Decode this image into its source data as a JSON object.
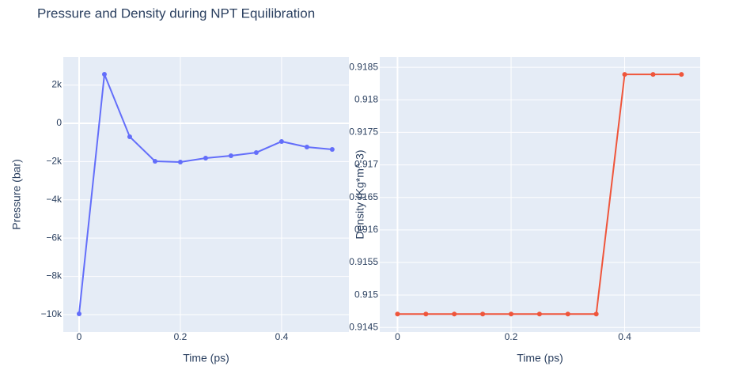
{
  "title": "Pressure and Density during NPT Equilibration",
  "chart_data": [
    {
      "type": "line",
      "xlabel": "Time (ps)",
      "ylabel": "Pressure (bar)",
      "x": [
        0,
        0.05,
        0.1,
        0.15,
        0.2,
        0.25,
        0.3,
        0.35,
        0.4,
        0.45,
        0.5
      ],
      "values": [
        -9959,
        2562,
        -702,
        -1983,
        -2025,
        -1818,
        -1694,
        -1529,
        -950,
        -1240,
        -1364
      ],
      "color": "#636efa",
      "markers": true,
      "grid": true,
      "xlim": [
        -0.03125,
        0.533
      ],
      "xticks": [
        0,
        0.2,
        0.4
      ],
      "ylim": [
        -10910,
        3470
      ],
      "yticks": [
        {
          "value": 2000,
          "label": "2k"
        },
        0,
        {
          "value": -2000,
          "label": "−2k"
        },
        {
          "value": -4000,
          "label": "−4k"
        },
        {
          "value": -6000,
          "label": "−6k"
        },
        {
          "value": -8000,
          "label": "−8k"
        },
        {
          "value": -10000,
          "label": "−10k"
        }
      ]
    },
    {
      "type": "line",
      "xlabel": "Time (ps)",
      "ylabel": "Density (Kg*m^-3)",
      "x": [
        0,
        0.05,
        0.1,
        0.15,
        0.2,
        0.25,
        0.3,
        0.35,
        0.4,
        0.45,
        0.5
      ],
      "values": [
        0.914707,
        0.914707,
        0.914707,
        0.914707,
        0.914707,
        0.914707,
        0.914707,
        0.914707,
        0.918391,
        0.918391,
        0.918391
      ],
      "color": "#ef553b",
      "markers": true,
      "grid": true,
      "xlim": [
        -0.03125,
        0.533
      ],
      "xticks": [
        0,
        0.2,
        0.4
      ],
      "ylim": [
        0.91443,
        0.91866
      ],
      "yticks": [
        0.9145,
        0.915,
        0.9155,
        0.916,
        0.9165,
        0.917,
        0.9175,
        0.918,
        0.9185
      ]
    }
  ]
}
